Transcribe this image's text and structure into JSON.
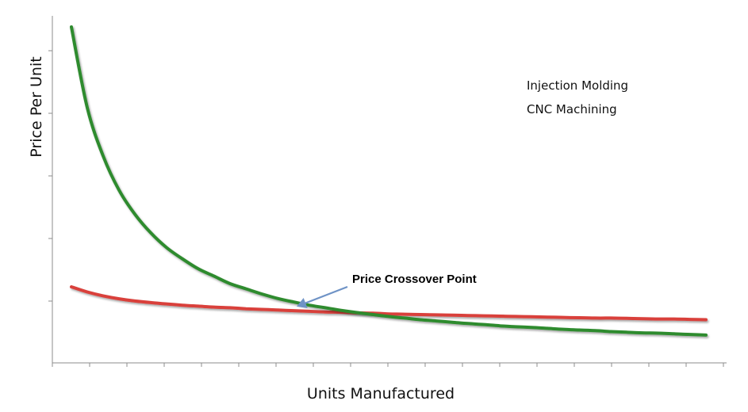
{
  "chart_data": {
    "type": "line",
    "title": "",
    "xlabel": "Units Manufactured",
    "ylabel": "Price Per Unit",
    "xlim": [
      0,
      100
    ],
    "ylim": [
      0,
      100
    ],
    "grid": false,
    "legend_position": "top-right",
    "x": [
      0,
      2.5,
      5,
      7.5,
      10,
      12.5,
      15,
      17.5,
      20,
      22.5,
      25,
      27.5,
      30,
      32.5,
      35,
      37.5,
      40,
      42.5,
      45,
      47.5,
      50,
      52.5,
      55,
      57.5,
      60,
      62.5,
      65,
      67.5,
      70,
      72.5,
      75,
      77.5,
      80,
      82.5,
      85,
      87.5,
      90,
      92.5,
      95,
      97.5,
      100
    ],
    "series": [
      {
        "name": "Injection Molding",
        "color": "#2e8b2e",
        "values": [
          100.0,
          74.9,
          59.9,
          49.3,
          41.8,
          36.0,
          31.4,
          27.9,
          24.8,
          22.5,
          20.2,
          18.6,
          17.0,
          15.6,
          14.5,
          13.5,
          12.7,
          11.9,
          11.2,
          10.6,
          10.0,
          9.5,
          9.0,
          8.6,
          8.2,
          7.8,
          7.5,
          7.1,
          6.8,
          6.6,
          6.3,
          6.0,
          5.8,
          5.6,
          5.3,
          5.1,
          4.9,
          4.8,
          4.6,
          4.4,
          4.2
        ]
      },
      {
        "name": "CNC Machining",
        "color": "#d9403a",
        "values": [
          19.2,
          17.6,
          16.4,
          15.5,
          14.8,
          14.3,
          13.9,
          13.5,
          13.2,
          12.9,
          12.7,
          12.4,
          12.2,
          12.0,
          11.8,
          11.6,
          11.4,
          11.3,
          11.1,
          11.0,
          10.8,
          10.7,
          10.6,
          10.5,
          10.4,
          10.3,
          10.2,
          10.1,
          10.0,
          9.9,
          9.8,
          9.7,
          9.6,
          9.5,
          9.5,
          9.4,
          9.3,
          9.2,
          9.2,
          9.1,
          9.0
        ]
      }
    ],
    "annotations": [
      {
        "text": "Price Crossover Point",
        "x": 35.0,
        "y": 12.6
      }
    ]
  }
}
